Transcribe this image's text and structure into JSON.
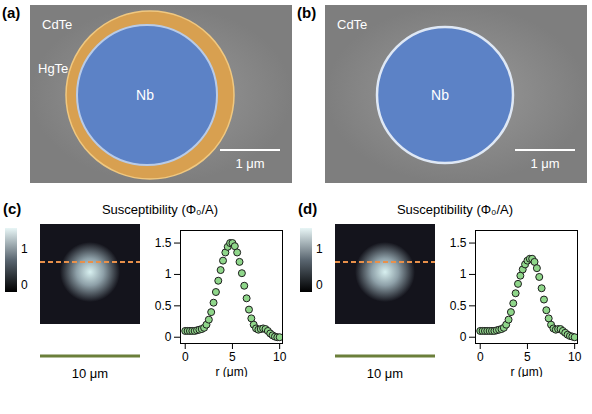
{
  "figure": {
    "panels": [
      {
        "label": "(a)",
        "kind": "sem",
        "labels": {
          "substrate": "CdTe",
          "ring": "HgTe",
          "disk": "Nb"
        },
        "scale_bar": "1 μm"
      },
      {
        "label": "(b)",
        "kind": "sem",
        "labels": {
          "substrate": "CdTe",
          "disk": "Nb"
        },
        "scale_bar": "1 μm"
      },
      {
        "label": "(c)",
        "kind": "map",
        "title": "Susceptibility (Φ₀/A)",
        "colorbar": {
          "range": [
            -0.2,
            1.6
          ],
          "ticks": [
            0,
            1
          ]
        },
        "scale_bar": "10 μm"
      },
      {
        "label": "(d)",
        "kind": "map",
        "title": "Susceptibility (Φ₀/A)",
        "colorbar": {
          "range": [
            -0.2,
            1.6
          ],
          "ticks": [
            0,
            1
          ]
        },
        "scale_bar": "10 μm"
      }
    ]
  },
  "chart_data": [
    {
      "type": "scatter",
      "x_label": "r (μm)",
      "x": [
        0,
        0.25,
        0.5,
        0.75,
        1,
        1.25,
        1.5,
        1.75,
        2,
        2.25,
        2.5,
        2.75,
        3,
        3.25,
        3.5,
        3.75,
        4,
        4.25,
        4.5,
        4.75,
        5,
        5.25,
        5.5,
        5.75,
        6,
        6.25,
        6.5,
        6.75,
        7,
        7.25,
        7.5,
        7.75,
        8,
        8.25,
        8.5,
        8.75,
        9,
        9.25,
        9.5,
        9.75,
        10
      ],
      "values": [
        0.1,
        0.1,
        0.1,
        0.1,
        0.1,
        0.11,
        0.12,
        0.13,
        0.15,
        0.2,
        0.28,
        0.4,
        0.55,
        0.72,
        0.9,
        1.07,
        1.22,
        1.35,
        1.44,
        1.5,
        1.5,
        1.45,
        1.35,
        1.2,
        1.02,
        0.82,
        0.62,
        0.44,
        0.3,
        0.2,
        0.14,
        0.12,
        0.13,
        0.14,
        0.13,
        0.1,
        0.06,
        0.03,
        0.01,
        0,
        0
      ],
      "color": "#8fd68a",
      "marker": "circle",
      "xlim": [
        -0.5,
        10.3
      ],
      "ylim": [
        -0.1,
        1.7
      ],
      "xticks": [
        0,
        5,
        10
      ],
      "yticks": [
        0,
        0.5,
        1,
        1.5
      ]
    },
    {
      "type": "scatter",
      "x_label": "r (μm)",
      "x": [
        0,
        0.25,
        0.5,
        0.75,
        1,
        1.25,
        1.5,
        1.75,
        2,
        2.25,
        2.5,
        2.75,
        3,
        3.25,
        3.5,
        3.75,
        4,
        4.25,
        4.5,
        4.75,
        5,
        5.25,
        5.5,
        5.75,
        6,
        6.25,
        6.5,
        6.75,
        7,
        7.25,
        7.5,
        7.75,
        8,
        8.25,
        8.5,
        8.75,
        9,
        9.25,
        9.5,
        9.75,
        10
      ],
      "values": [
        0.1,
        0.1,
        0.1,
        0.1,
        0.1,
        0.1,
        0.1,
        0.11,
        0.12,
        0.13,
        0.15,
        0.2,
        0.28,
        0.4,
        0.54,
        0.7,
        0.85,
        0.98,
        1.08,
        1.16,
        1.22,
        1.25,
        1.25,
        1.2,
        1.1,
        0.96,
        0.78,
        0.6,
        0.43,
        0.3,
        0.2,
        0.14,
        0.12,
        0.13,
        0.13,
        0.1,
        0.07,
        0.04,
        0.02,
        0.01,
        0
      ],
      "color": "#8fd68a",
      "marker": "circle",
      "xlim": [
        -0.5,
        10.3
      ],
      "ylim": [
        -0.1,
        1.7
      ],
      "xticks": [
        0,
        5,
        10
      ],
      "yticks": [
        0,
        0.5,
        1,
        1.5
      ]
    }
  ]
}
